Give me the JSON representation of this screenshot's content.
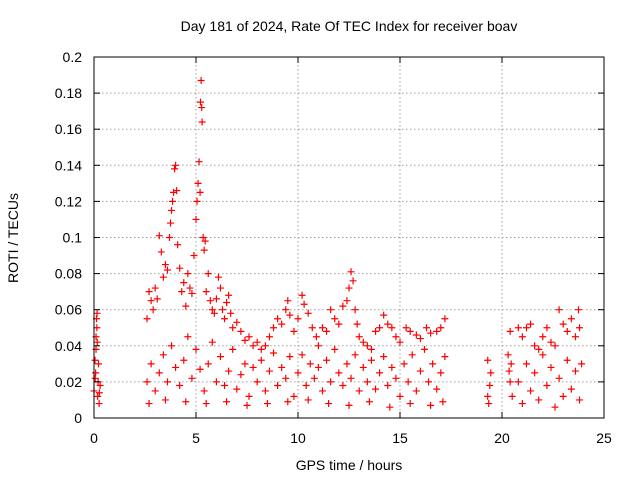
{
  "chart_data": {
    "type": "scatter",
    "title": "Day 181 of 2024, Rate Of TEC Index for receiver boav",
    "xlabel": "GPS time / hours",
    "ylabel": "ROTI / TECUs",
    "xlim": [
      0,
      25
    ],
    "ylim": [
      0,
      0.2
    ],
    "x_ticks": [
      0,
      5,
      10,
      15,
      20,
      25
    ],
    "x_tick_labels": [
      "0",
      "5",
      "10",
      "15",
      "20",
      "25"
    ],
    "y_ticks": [
      0,
      0.02,
      0.04,
      0.06,
      0.08,
      0.1,
      0.12,
      0.14,
      0.16,
      0.18,
      0.2
    ],
    "y_tick_labels": [
      "0",
      "0.02",
      "0.04",
      "0.06",
      "0.08",
      "0.1",
      "0.12",
      "0.14",
      "0.16",
      "0.18",
      "0.2"
    ],
    "grid": true,
    "marker": "+",
    "color": "#ff0000",
    "series": [
      {
        "points": [
          [
            0.0,
            0.015
          ],
          [
            0.05,
            0.032
          ],
          [
            0.1,
            0.045
          ],
          [
            0.12,
            0.055
          ],
          [
            0.15,
            0.058
          ],
          [
            0.08,
            0.025
          ],
          [
            0.18,
            0.012
          ],
          [
            0.2,
            0.02
          ],
          [
            0.25,
            0.008
          ],
          [
            0.22,
            0.03
          ],
          [
            0.3,
            0.018
          ],
          [
            0.1,
            0.038
          ],
          [
            0.14,
            0.05
          ],
          [
            0.06,
            0.022
          ],
          [
            0.26,
            0.014
          ],
          [
            0.16,
            0.042
          ],
          [
            2.6,
            0.055
          ],
          [
            2.7,
            0.07
          ],
          [
            2.8,
            0.065
          ],
          [
            2.9,
            0.06
          ],
          [
            3.0,
            0.072
          ],
          [
            3.1,
            0.066
          ],
          [
            3.2,
            0.101
          ],
          [
            3.3,
            0.092
          ],
          [
            3.4,
            0.078
          ],
          [
            3.5,
            0.085
          ],
          [
            3.6,
            0.082
          ],
          [
            3.7,
            0.1
          ],
          [
            3.75,
            0.108
          ],
          [
            3.8,
            0.115
          ],
          [
            3.85,
            0.12
          ],
          [
            3.9,
            0.125
          ],
          [
            3.95,
            0.138
          ],
          [
            4.0,
            0.14
          ],
          [
            4.05,
            0.126
          ],
          [
            4.1,
            0.096
          ],
          [
            4.2,
            0.083
          ],
          [
            4.3,
            0.07
          ],
          [
            4.4,
            0.075
          ],
          [
            4.5,
            0.062
          ],
          [
            4.6,
            0.08
          ],
          [
            4.7,
            0.072
          ],
          [
            4.8,
            0.069
          ],
          [
            4.9,
            0.09
          ],
          [
            5.0,
            0.11
          ],
          [
            5.05,
            0.12
          ],
          [
            5.1,
            0.13
          ],
          [
            5.15,
            0.142
          ],
          [
            5.2,
            0.125
          ],
          [
            5.22,
            0.175
          ],
          [
            5.25,
            0.187
          ],
          [
            5.28,
            0.172
          ],
          [
            5.3,
            0.164
          ],
          [
            5.35,
            0.1
          ],
          [
            5.4,
            0.093
          ],
          [
            5.45,
            0.098
          ],
          [
            5.5,
            0.07
          ],
          [
            5.6,
            0.08
          ],
          [
            5.7,
            0.065
          ],
          [
            5.8,
            0.06
          ],
          [
            5.9,
            0.058
          ],
          [
            6.0,
            0.066
          ],
          [
            6.1,
            0.078
          ],
          [
            6.2,
            0.072
          ],
          [
            6.3,
            0.06
          ],
          [
            6.4,
            0.055
          ],
          [
            6.5,
            0.064
          ],
          [
            6.6,
            0.068
          ],
          [
            6.7,
            0.058
          ],
          [
            6.8,
            0.05
          ],
          [
            7.0,
            0.053
          ],
          [
            7.2,
            0.048
          ],
          [
            7.4,
            0.043
          ],
          [
            7.6,
            0.045
          ],
          [
            7.8,
            0.04
          ],
          [
            8.0,
            0.042
          ],
          [
            8.2,
            0.038
          ],
          [
            8.4,
            0.04
          ],
          [
            8.6,
            0.045
          ],
          [
            8.8,
            0.05
          ],
          [
            9.0,
            0.055
          ],
          [
            9.2,
            0.052
          ],
          [
            9.4,
            0.06
          ],
          [
            9.5,
            0.065
          ],
          [
            9.6,
            0.057
          ],
          [
            9.8,
            0.048
          ],
          [
            10.0,
            0.055
          ],
          [
            10.2,
            0.068
          ],
          [
            10.3,
            0.063
          ],
          [
            10.5,
            0.058
          ],
          [
            10.7,
            0.05
          ],
          [
            10.9,
            0.045
          ],
          [
            11.0,
            0.04
          ],
          [
            11.2,
            0.05
          ],
          [
            11.4,
            0.048
          ],
          [
            11.6,
            0.06
          ],
          [
            11.8,
            0.055
          ],
          [
            12.0,
            0.052
          ],
          [
            12.2,
            0.062
          ],
          [
            12.4,
            0.065
          ],
          [
            12.5,
            0.072
          ],
          [
            12.6,
            0.081
          ],
          [
            12.7,
            0.076
          ],
          [
            12.8,
            0.06
          ],
          [
            12.9,
            0.052
          ],
          [
            13.0,
            0.045
          ],
          [
            13.2,
            0.042
          ],
          [
            13.4,
            0.04
          ],
          [
            13.6,
            0.038
          ],
          [
            13.8,
            0.048
          ],
          [
            14.0,
            0.05
          ],
          [
            14.2,
            0.057
          ],
          [
            14.4,
            0.052
          ],
          [
            14.6,
            0.05
          ],
          [
            14.8,
            0.045
          ],
          [
            15.0,
            0.042
          ],
          [
            15.3,
            0.05
          ],
          [
            15.5,
            0.048
          ],
          [
            15.8,
            0.046
          ],
          [
            16.0,
            0.044
          ],
          [
            16.3,
            0.05
          ],
          [
            16.5,
            0.047
          ],
          [
            16.8,
            0.048
          ],
          [
            17.0,
            0.05
          ],
          [
            17.2,
            0.055
          ],
          [
            2.6,
            0.02
          ],
          [
            2.8,
            0.03
          ],
          [
            3.0,
            0.015
          ],
          [
            3.2,
            0.025
          ],
          [
            3.4,
            0.035
          ],
          [
            3.6,
            0.02
          ],
          [
            3.8,
            0.04
          ],
          [
            4.0,
            0.028
          ],
          [
            4.2,
            0.018
          ],
          [
            4.4,
            0.032
          ],
          [
            4.6,
            0.045
          ],
          [
            4.8,
            0.022
          ],
          [
            5.0,
            0.038
          ],
          [
            5.2,
            0.027
          ],
          [
            5.4,
            0.015
          ],
          [
            5.6,
            0.03
          ],
          [
            5.8,
            0.042
          ],
          [
            6.0,
            0.02
          ],
          [
            6.2,
            0.034
          ],
          [
            6.4,
            0.018
          ],
          [
            6.6,
            0.026
          ],
          [
            6.8,
            0.038
          ],
          [
            7.0,
            0.016
          ],
          [
            7.2,
            0.024
          ],
          [
            7.4,
            0.03
          ],
          [
            7.6,
            0.012
          ],
          [
            7.8,
            0.028
          ],
          [
            8.0,
            0.02
          ],
          [
            8.2,
            0.032
          ],
          [
            8.4,
            0.015
          ],
          [
            8.6,
            0.026
          ],
          [
            8.8,
            0.036
          ],
          [
            9.0,
            0.018
          ],
          [
            9.2,
            0.028
          ],
          [
            9.4,
            0.022
          ],
          [
            9.6,
            0.034
          ],
          [
            9.8,
            0.012
          ],
          [
            10.0,
            0.025
          ],
          [
            10.2,
            0.035
          ],
          [
            10.4,
            0.018
          ],
          [
            10.6,
            0.03
          ],
          [
            10.8,
            0.022
          ],
          [
            11.0,
            0.028
          ],
          [
            11.2,
            0.015
          ],
          [
            11.4,
            0.032
          ],
          [
            11.6,
            0.02
          ],
          [
            11.8,
            0.038
          ],
          [
            12.0,
            0.025
          ],
          [
            12.2,
            0.018
          ],
          [
            12.4,
            0.03
          ],
          [
            12.6,
            0.022
          ],
          [
            12.8,
            0.035
          ],
          [
            13.0,
            0.015
          ],
          [
            13.2,
            0.028
          ],
          [
            13.4,
            0.02
          ],
          [
            13.6,
            0.032
          ],
          [
            13.8,
            0.016
          ],
          [
            14.0,
            0.025
          ],
          [
            14.2,
            0.034
          ],
          [
            14.4,
            0.018
          ],
          [
            14.6,
            0.028
          ],
          [
            14.8,
            0.022
          ],
          [
            15.0,
            0.012
          ],
          [
            15.2,
            0.03
          ],
          [
            15.4,
            0.02
          ],
          [
            15.6,
            0.035
          ],
          [
            15.8,
            0.015
          ],
          [
            16.0,
            0.026
          ],
          [
            16.2,
            0.038
          ],
          [
            16.4,
            0.02
          ],
          [
            16.6,
            0.03
          ],
          [
            16.8,
            0.016
          ],
          [
            17.0,
            0.025
          ],
          [
            17.2,
            0.034
          ],
          [
            2.7,
            0.008
          ],
          [
            3.5,
            0.01
          ],
          [
            4.5,
            0.009
          ],
          [
            5.5,
            0.008
          ],
          [
            6.5,
            0.009
          ],
          [
            7.5,
            0.007
          ],
          [
            8.5,
            0.008
          ],
          [
            9.5,
            0.009
          ],
          [
            10.5,
            0.01
          ],
          [
            11.5,
            0.008
          ],
          [
            12.5,
            0.007
          ],
          [
            13.5,
            0.009
          ],
          [
            14.5,
            0.006
          ],
          [
            15.5,
            0.008
          ],
          [
            16.5,
            0.007
          ],
          [
            17.1,
            0.009
          ],
          [
            19.3,
            0.032
          ],
          [
            19.4,
            0.018
          ],
          [
            19.35,
            0.008
          ],
          [
            19.45,
            0.025
          ],
          [
            19.3,
            0.012
          ],
          [
            20.3,
            0.035
          ],
          [
            20.4,
            0.02
          ],
          [
            20.5,
            0.012
          ],
          [
            20.35,
            0.026
          ],
          [
            20.45,
            0.03
          ],
          [
            20.4,
            0.048
          ],
          [
            20.8,
            0.05
          ],
          [
            21.0,
            0.045
          ],
          [
            21.2,
            0.05
          ],
          [
            21.4,
            0.052
          ],
          [
            21.6,
            0.04
          ],
          [
            21.8,
            0.038
          ],
          [
            22.0,
            0.045
          ],
          [
            22.2,
            0.05
          ],
          [
            22.4,
            0.042
          ],
          [
            22.6,
            0.04
          ],
          [
            22.8,
            0.06
          ],
          [
            23.0,
            0.052
          ],
          [
            23.2,
            0.048
          ],
          [
            23.4,
            0.055
          ],
          [
            23.6,
            0.045
          ],
          [
            23.75,
            0.06
          ],
          [
            23.8,
            0.05
          ],
          [
            20.8,
            0.02
          ],
          [
            21.0,
            0.008
          ],
          [
            21.2,
            0.03
          ],
          [
            21.4,
            0.015
          ],
          [
            21.6,
            0.025
          ],
          [
            21.8,
            0.01
          ],
          [
            22.0,
            0.035
          ],
          [
            22.2,
            0.018
          ],
          [
            22.4,
            0.028
          ],
          [
            22.6,
            0.006
          ],
          [
            22.8,
            0.022
          ],
          [
            23.0,
            0.012
          ],
          [
            23.2,
            0.032
          ],
          [
            23.4,
            0.016
          ],
          [
            23.6,
            0.026
          ],
          [
            23.8,
            0.01
          ],
          [
            23.9,
            0.03
          ]
        ]
      }
    ]
  }
}
